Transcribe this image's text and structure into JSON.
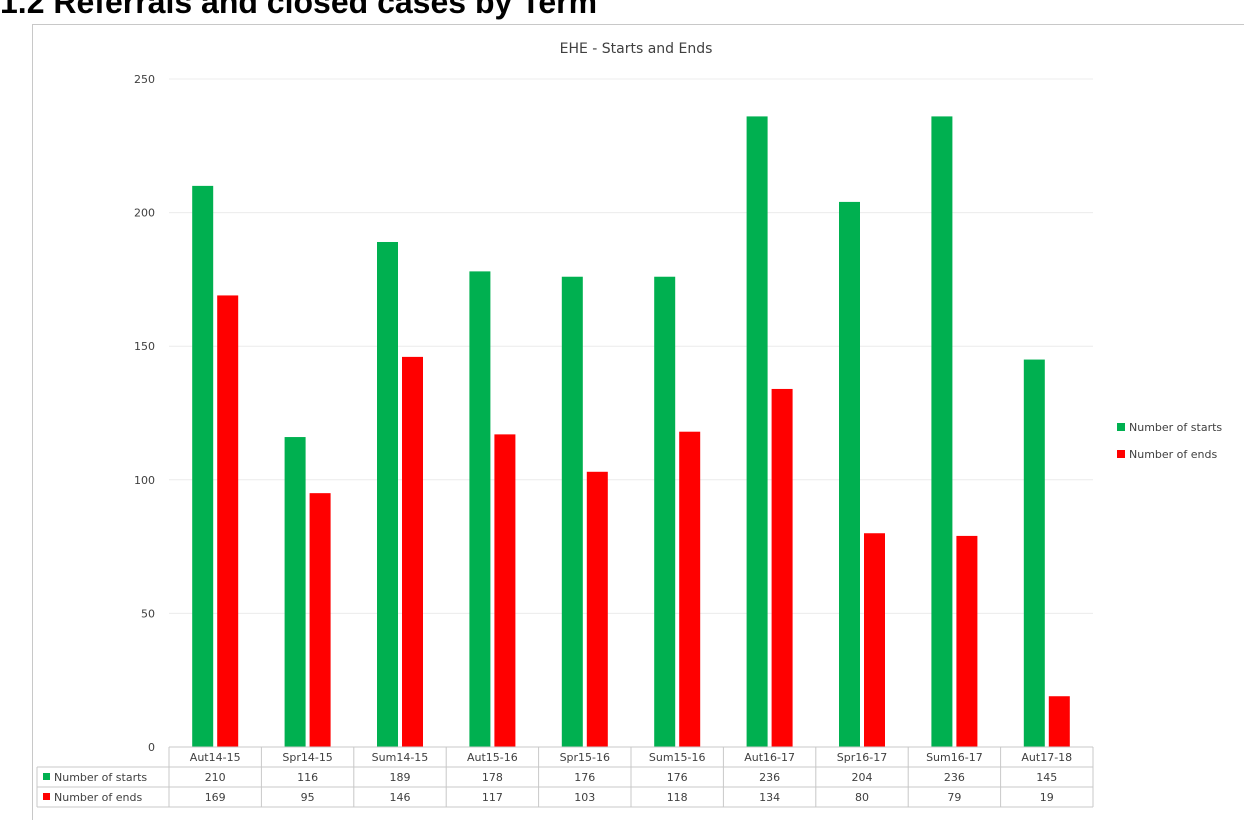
{
  "heading": "1.2 Referrals and closed cases by Term",
  "chart_data": {
    "type": "bar",
    "title": "EHE - Starts and Ends",
    "xlabel": "",
    "ylabel": "",
    "ylim": [
      0,
      250
    ],
    "yticks": [
      0,
      50,
      100,
      150,
      200,
      250
    ],
    "grid": true,
    "legend_position": "right",
    "categories": [
      "Aut14-15",
      "Spr14-15",
      "Sum14-15",
      "Aut15-16",
      "Spr15-16",
      "Sum15-16",
      "Aut16-17",
      "Spr16-17",
      "Sum16-17",
      "Aut17-18"
    ],
    "series": [
      {
        "name": "Number of starts",
        "color": "#00b050",
        "values": [
          210,
          116,
          189,
          178,
          176,
          176,
          236,
          204,
          236,
          145
        ]
      },
      {
        "name": "Number of ends",
        "color": "#ff0000",
        "values": [
          169,
          95,
          146,
          117,
          103,
          118,
          134,
          80,
          79,
          19
        ]
      }
    ],
    "data_table": true
  }
}
